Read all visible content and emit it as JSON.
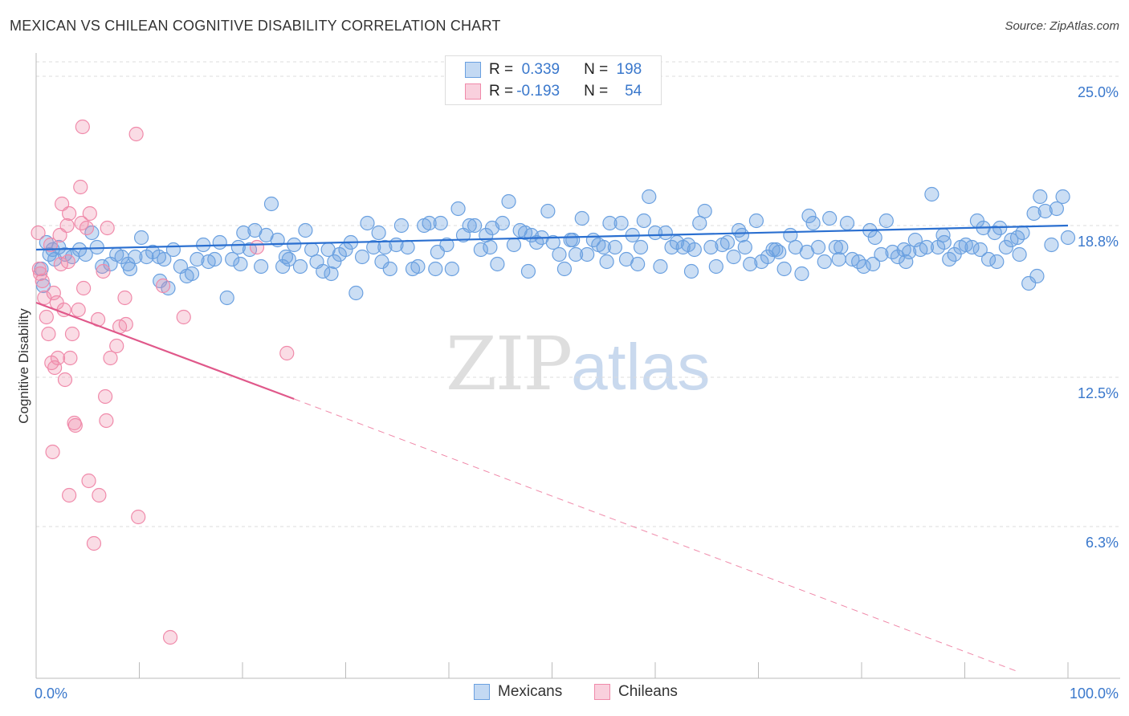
{
  "title": "MEXICAN VS CHILEAN COGNITIVE DISABILITY CORRELATION CHART",
  "source": "Source: ZipAtlas.com",
  "watermark": {
    "zip": "ZIP",
    "atlas": "atlas"
  },
  "legend": {
    "rows": [
      {
        "r_label": "R = ",
        "r_value": "0.339",
        "n_label": "N = ",
        "n_value": "198",
        "color": "#6aa0e0"
      },
      {
        "r_label": "R = ",
        "r_value": "-0.193",
        "n_label": "N = ",
        "n_value": "54",
        "color": "#f08aaa"
      }
    ]
  },
  "bottom_legend": [
    {
      "label": "Mexicans",
      "color": "#6aa0e0"
    },
    {
      "label": "Chileans",
      "color": "#f08aaa"
    }
  ],
  "chart_data": {
    "type": "scatter",
    "title": "MEXICAN VS CHILEAN COGNITIVE DISABILITY CORRELATION CHART",
    "xlabel": "",
    "ylabel": "Cognitive Disability",
    "xlim": [
      0,
      100
    ],
    "ylim": [
      0,
      25.8
    ],
    "x_tick_labels": [
      "0.0%",
      "100.0%"
    ],
    "y_ticks": [
      6.3,
      12.5,
      18.8,
      25.0
    ],
    "y_tick_labels": [
      "6.3%",
      "12.5%",
      "18.8%",
      "25.0%"
    ],
    "grid": true,
    "colors": {
      "mexicans": "#6aa0e0",
      "mexicans_line": "#2a6fd0",
      "chileans": "#f08aaa",
      "chileans_line": "#e0588a"
    },
    "series": [
      {
        "name": "Mexicans",
        "r": 0.339,
        "n": 198,
        "trend": {
          "x": [
            0,
            100
          ],
          "y": [
            17.8,
            18.8
          ]
        },
        "points": [
          [
            0.5,
            17.0
          ],
          [
            0.7,
            16.3
          ],
          [
            1.0,
            18.1
          ],
          [
            1.3,
            17.6
          ],
          [
            1.6,
            17.8
          ],
          [
            2.2,
            17.9
          ],
          [
            2.8,
            17.6
          ],
          [
            3.5,
            17.5
          ],
          [
            4.2,
            17.8
          ],
          [
            4.8,
            17.6
          ],
          [
            5.4,
            18.5
          ],
          [
            5.9,
            17.9
          ],
          [
            6.4,
            17.1
          ],
          [
            7.2,
            17.2
          ],
          [
            7.8,
            17.6
          ],
          [
            8.3,
            17.5
          ],
          [
            8.9,
            17.2
          ],
          [
            9.6,
            17.5
          ],
          [
            10.2,
            18.3
          ],
          [
            10.7,
            17.5
          ],
          [
            11.3,
            17.7
          ],
          [
            11.9,
            17.5
          ],
          [
            12.4,
            17.4
          ],
          [
            12.8,
            16.2
          ],
          [
            13.3,
            17.8
          ],
          [
            14.0,
            17.1
          ],
          [
            14.6,
            16.7
          ],
          [
            15.1,
            16.8
          ],
          [
            15.6,
            17.4
          ],
          [
            16.2,
            18.0
          ],
          [
            16.7,
            17.3
          ],
          [
            17.3,
            17.4
          ],
          [
            17.8,
            18.1
          ],
          [
            18.5,
            15.8
          ],
          [
            19.0,
            17.4
          ],
          [
            19.6,
            17.9
          ],
          [
            20.1,
            18.5
          ],
          [
            20.7,
            17.8
          ],
          [
            21.2,
            18.6
          ],
          [
            21.8,
            17.1
          ],
          [
            22.3,
            18.4
          ],
          [
            22.8,
            19.7
          ],
          [
            23.4,
            18.2
          ],
          [
            23.9,
            17.1
          ],
          [
            24.5,
            17.4
          ],
          [
            25.0,
            18.0
          ],
          [
            25.6,
            17.1
          ],
          [
            26.1,
            18.6
          ],
          [
            26.7,
            17.8
          ],
          [
            27.2,
            17.3
          ],
          [
            27.8,
            16.9
          ],
          [
            28.3,
            17.8
          ],
          [
            28.9,
            17.3
          ],
          [
            29.4,
            17.6
          ],
          [
            30.0,
            17.8
          ],
          [
            30.5,
            18.1
          ],
          [
            31.0,
            16.0
          ],
          [
            31.6,
            17.5
          ],
          [
            32.1,
            18.9
          ],
          [
            32.7,
            17.9
          ],
          [
            33.2,
            18.5
          ],
          [
            33.8,
            17.9
          ],
          [
            34.3,
            17.0
          ],
          [
            34.9,
            18.0
          ],
          [
            35.4,
            18.8
          ],
          [
            36.0,
            17.9
          ],
          [
            36.5,
            17.0
          ],
          [
            37.0,
            17.1
          ],
          [
            37.6,
            18.8
          ],
          [
            38.1,
            18.9
          ],
          [
            38.7,
            17.0
          ],
          [
            39.2,
            18.9
          ],
          [
            39.8,
            18.0
          ],
          [
            40.3,
            17.0
          ],
          [
            40.9,
            19.5
          ],
          [
            41.4,
            18.4
          ],
          [
            42.0,
            18.8
          ],
          [
            42.5,
            18.8
          ],
          [
            43.1,
            17.8
          ],
          [
            43.6,
            18.4
          ],
          [
            44.2,
            18.7
          ],
          [
            44.7,
            17.2
          ],
          [
            45.2,
            18.9
          ],
          [
            45.8,
            19.8
          ],
          [
            46.3,
            18.0
          ],
          [
            46.9,
            18.6
          ],
          [
            47.4,
            18.5
          ],
          [
            48.0,
            18.4
          ],
          [
            48.5,
            18.1
          ],
          [
            49.0,
            18.3
          ],
          [
            49.6,
            19.4
          ],
          [
            50.1,
            18.1
          ],
          [
            50.7,
            17.6
          ],
          [
            51.2,
            17.0
          ],
          [
            51.8,
            18.2
          ],
          [
            52.3,
            17.6
          ],
          [
            52.9,
            19.1
          ],
          [
            53.4,
            17.6
          ],
          [
            54.0,
            18.2
          ],
          [
            54.5,
            18.0
          ],
          [
            55.0,
            17.9
          ],
          [
            55.6,
            18.9
          ],
          [
            56.1,
            17.9
          ],
          [
            56.7,
            18.9
          ],
          [
            57.2,
            17.4
          ],
          [
            57.8,
            18.4
          ],
          [
            58.3,
            17.2
          ],
          [
            58.9,
            19.0
          ],
          [
            59.4,
            20.0
          ],
          [
            60.0,
            18.5
          ],
          [
            60.5,
            17.1
          ],
          [
            61.0,
            18.5
          ],
          [
            61.6,
            17.9
          ],
          [
            62.1,
            18.1
          ],
          [
            62.7,
            17.9
          ],
          [
            63.2,
            18.0
          ],
          [
            63.8,
            17.8
          ],
          [
            64.3,
            18.9
          ],
          [
            64.8,
            19.4
          ],
          [
            65.4,
            17.9
          ],
          [
            65.9,
            17.1
          ],
          [
            66.5,
            18.0
          ],
          [
            67.0,
            18.1
          ],
          [
            67.6,
            17.5
          ],
          [
            68.1,
            18.6
          ],
          [
            68.7,
            17.9
          ],
          [
            69.2,
            17.2
          ],
          [
            69.8,
            19.0
          ],
          [
            70.3,
            17.3
          ],
          [
            70.9,
            17.5
          ],
          [
            71.4,
            17.8
          ],
          [
            72.0,
            17.7
          ],
          [
            72.5,
            17.0
          ],
          [
            73.1,
            18.4
          ],
          [
            73.6,
            17.9
          ],
          [
            74.2,
            16.8
          ],
          [
            74.7,
            17.7
          ],
          [
            75.3,
            18.9
          ],
          [
            75.8,
            17.9
          ],
          [
            76.4,
            17.3
          ],
          [
            76.9,
            19.1
          ],
          [
            77.5,
            17.9
          ],
          [
            78.0,
            17.9
          ],
          [
            78.6,
            18.9
          ],
          [
            79.1,
            17.4
          ],
          [
            79.7,
            17.3
          ],
          [
            80.2,
            17.1
          ],
          [
            80.8,
            18.6
          ],
          [
            81.3,
            18.3
          ],
          [
            81.9,
            17.6
          ],
          [
            82.4,
            19.0
          ],
          [
            83.0,
            17.7
          ],
          [
            83.5,
            17.5
          ],
          [
            84.1,
            17.8
          ],
          [
            84.6,
            17.7
          ],
          [
            85.2,
            18.2
          ],
          [
            85.7,
            17.8
          ],
          [
            86.3,
            17.9
          ],
          [
            86.8,
            20.1
          ],
          [
            87.4,
            17.9
          ],
          [
            87.9,
            18.4
          ],
          [
            88.5,
            17.4
          ],
          [
            89.0,
            17.6
          ],
          [
            89.6,
            17.9
          ],
          [
            90.1,
            18.0
          ],
          [
            90.7,
            17.9
          ],
          [
            91.2,
            19.0
          ],
          [
            91.8,
            18.7
          ],
          [
            92.3,
            17.4
          ],
          [
            92.9,
            18.5
          ],
          [
            93.4,
            18.7
          ],
          [
            94.0,
            17.9
          ],
          [
            94.5,
            18.2
          ],
          [
            95.1,
            18.3
          ],
          [
            95.6,
            18.5
          ],
          [
            96.2,
            16.4
          ],
          [
            96.7,
            19.3
          ],
          [
            97.3,
            20.0
          ],
          [
            97.8,
            19.4
          ],
          [
            98.4,
            18.0
          ],
          [
            98.9,
            19.5
          ],
          [
            99.5,
            20.0
          ],
          [
            100.0,
            18.3
          ],
          [
            1.8,
            17.4
          ],
          [
            9.1,
            17.0
          ],
          [
            12.0,
            16.5
          ],
          [
            19.8,
            17.2
          ],
          [
            24.2,
            17.5
          ],
          [
            28.6,
            16.8
          ],
          [
            33.5,
            17.3
          ],
          [
            38.9,
            17.7
          ],
          [
            44.0,
            17.9
          ],
          [
            47.7,
            16.9
          ],
          [
            52.0,
            18.2
          ],
          [
            55.3,
            17.3
          ],
          [
            58.6,
            17.9
          ],
          [
            63.5,
            16.9
          ],
          [
            68.4,
            18.4
          ],
          [
            71.7,
            17.8
          ],
          [
            74.9,
            19.2
          ],
          [
            77.8,
            17.4
          ],
          [
            81.1,
            17.2
          ],
          [
            84.3,
            17.3
          ],
          [
            88.0,
            18.1
          ],
          [
            91.5,
            17.8
          ],
          [
            93.1,
            17.3
          ],
          [
            95.3,
            17.6
          ],
          [
            97.0,
            16.7
          ]
        ]
      },
      {
        "name": "Chileans",
        "r": -0.193,
        "n": 54,
        "trend": {
          "x": [
            0,
            25
          ],
          "y": [
            15.6,
            11.6
          ]
        },
        "trend_dashed": {
          "x": [
            25,
            95
          ],
          "y": [
            11.6,
            0.3
          ]
        },
        "points": [
          [
            0.2,
            18.5
          ],
          [
            0.3,
            17.0
          ],
          [
            0.4,
            16.8
          ],
          [
            0.6,
            16.5
          ],
          [
            0.8,
            15.8
          ],
          [
            1.0,
            15.0
          ],
          [
            1.2,
            14.3
          ],
          [
            1.4,
            18.0
          ],
          [
            1.5,
            13.1
          ],
          [
            1.7,
            16.0
          ],
          [
            1.8,
            12.9
          ],
          [
            2.0,
            15.6
          ],
          [
            2.1,
            13.3
          ],
          [
            2.3,
            18.4
          ],
          [
            2.4,
            17.2
          ],
          [
            2.5,
            19.7
          ],
          [
            2.7,
            15.3
          ],
          [
            2.8,
            12.4
          ],
          [
            3.0,
            18.8
          ],
          [
            3.2,
            19.3
          ],
          [
            3.3,
            13.3
          ],
          [
            3.5,
            14.3
          ],
          [
            3.7,
            10.6
          ],
          [
            3.8,
            10.5
          ],
          [
            4.1,
            15.3
          ],
          [
            4.4,
            18.9
          ],
          [
            4.6,
            16.2
          ],
          [
            4.9,
            18.7
          ],
          [
            5.1,
            8.2
          ],
          [
            5.2,
            19.3
          ],
          [
            3.2,
            7.6
          ],
          [
            6.1,
            7.6
          ],
          [
            5.6,
            5.6
          ],
          [
            6.0,
            14.9
          ],
          [
            6.5,
            16.9
          ],
          [
            6.7,
            11.7
          ],
          [
            6.8,
            10.7
          ],
          [
            7.8,
            13.8
          ],
          [
            8.1,
            14.6
          ],
          [
            8.7,
            14.7
          ],
          [
            9.7,
            22.6
          ],
          [
            1.6,
            9.4
          ],
          [
            3.1,
            17.3
          ],
          [
            4.3,
            20.4
          ],
          [
            6.9,
            18.7
          ],
          [
            7.2,
            13.3
          ],
          [
            8.6,
            15.8
          ],
          [
            12.3,
            16.3
          ],
          [
            13.0,
            1.7
          ],
          [
            14.3,
            15.0
          ],
          [
            21.4,
            17.9
          ],
          [
            24.3,
            13.5
          ],
          [
            4.5,
            22.9
          ],
          [
            9.9,
            6.7
          ]
        ]
      }
    ]
  }
}
